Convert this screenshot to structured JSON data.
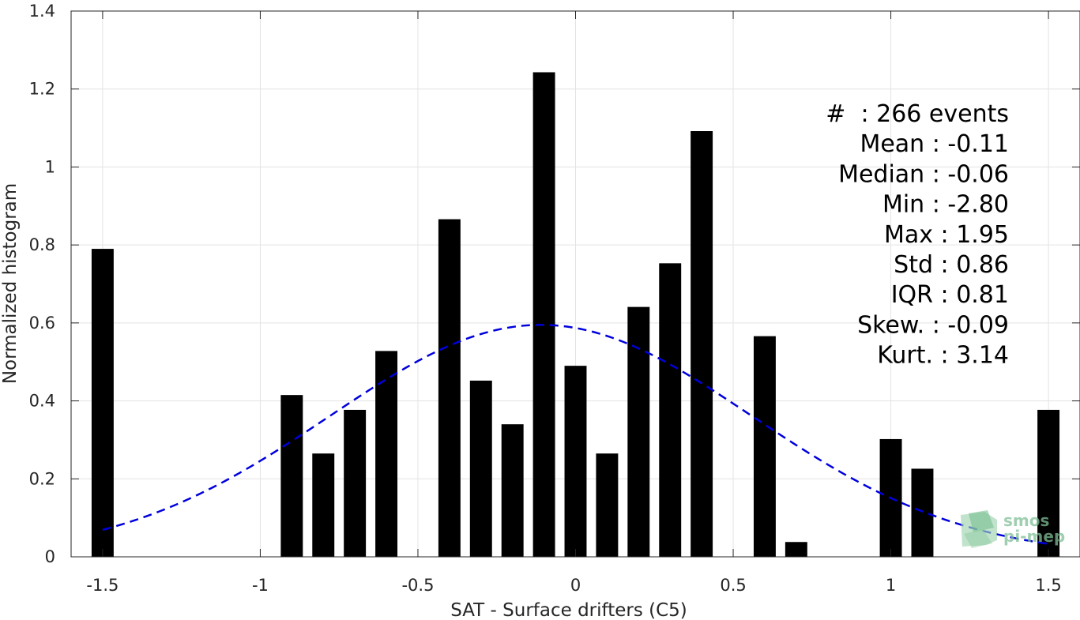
{
  "chart_data": {
    "type": "bar",
    "xlabel": "SAT - Surface drifters (C5)",
    "ylabel": "Normalized histogram",
    "xlim": [
      -1.6,
      1.6
    ],
    "ylim": [
      0,
      1.4
    ],
    "xticks": [
      -1.5,
      -1,
      -0.5,
      0,
      0.5,
      1,
      1.5
    ],
    "xtick_labels": [
      "-1.5",
      "-1",
      "-0.5",
      "0",
      "0.5",
      "1",
      "1.5"
    ],
    "yticks": [
      0,
      0.2,
      0.4,
      0.6,
      0.8,
      1,
      1.2,
      1.4
    ],
    "ytick_labels": [
      "0",
      "0.2",
      "0.4",
      "0.6",
      "0.8",
      "1",
      "1.2",
      "1.4"
    ],
    "grid": true,
    "bar_width": 0.07,
    "bar_color": "#000000",
    "bars": {
      "x": [
        -1.5,
        -0.9,
        -0.8,
        -0.7,
        -0.6,
        -0.4,
        -0.3,
        -0.2,
        -0.1,
        0.0,
        0.1,
        0.2,
        0.3,
        0.4,
        0.6,
        0.7,
        1.0,
        1.1,
        1.5
      ],
      "values": [
        0.79,
        0.415,
        0.265,
        0.377,
        0.528,
        0.866,
        0.452,
        0.34,
        1.243,
        0.49,
        0.265,
        0.641,
        0.753,
        1.092,
        0.566,
        0.038,
        0.302,
        0.226,
        0.377
      ]
    },
    "fit": {
      "type": "normal",
      "mean": -0.11,
      "std": 0.67,
      "peak": 0.595,
      "x_range": [
        -1.5,
        1.5
      ],
      "color": "#0000dd",
      "style": "dashed"
    },
    "stats": [
      "#  : 266 events",
      "Mean : -0.11",
      "Median : -0.06",
      "Min : -2.80",
      "Max : 1.95",
      "Std : 0.86",
      "IQR : 0.81",
      "Skew. : -0.09",
      "Kurt. : 3.14"
    ],
    "watermark": {
      "line1": "smos",
      "line2": "pi-mep"
    }
  }
}
